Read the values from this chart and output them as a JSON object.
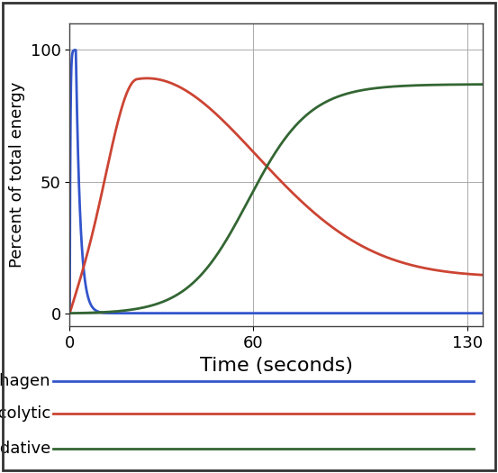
{
  "xlabel": "Time (seconds)",
  "ylabel": "Percent of total energy",
  "xlim": [
    0,
    135
  ],
  "ylim": [
    -5,
    110
  ],
  "yticks": [
    0,
    50,
    100
  ],
  "xticks": [
    0,
    60,
    130
  ],
  "grid_color": "#aaaaaa",
  "bg_color": "#ffffff",
  "border_color": "#444444",
  "phosphagen_color": "#3355cc",
  "glycolytic_color": "#cc4433",
  "oxidative_color": "#336633",
  "legend_labels": [
    "Phosphagen",
    "Glycolytic",
    "Oxidative"
  ],
  "xlabel_fontsize": 16,
  "ylabel_fontsize": 13,
  "tick_fontsize": 13,
  "legend_fontsize": 13,
  "linewidth": 2.0
}
